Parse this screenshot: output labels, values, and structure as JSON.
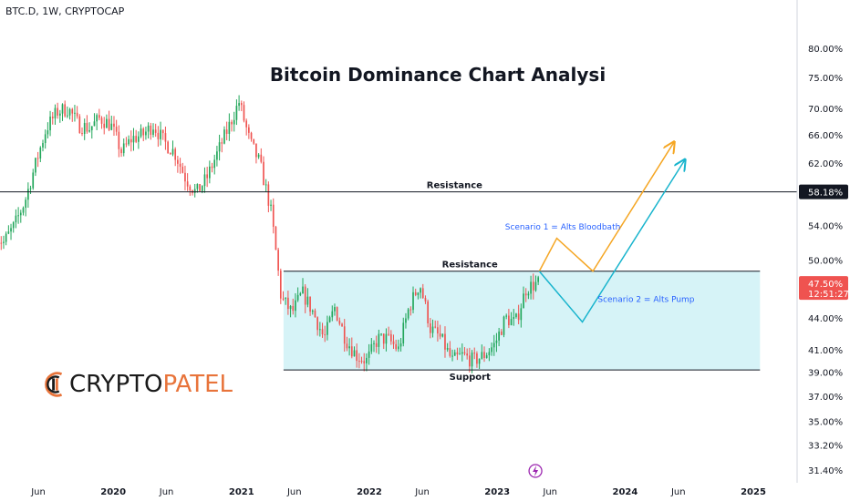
{
  "header": {
    "symbol": "BTC.D, 1W, CRYPTOCAP",
    "percent_label": "%"
  },
  "logo": {
    "text_part1": "CRYPTO",
    "text_part2": "PATEL",
    "accent": "#e8743b"
  },
  "colors": {
    "up": "#26a69a",
    "up_candle": "#21a65a",
    "down": "#ef5350",
    "zone_fill": "#d6f3f7",
    "scenario1": "#f5a623",
    "scenario2": "#18b4cd",
    "scenario1_text": "#2962ff",
    "price_badge": "#ef5350"
  },
  "chart_data": {
    "type": "candlestick",
    "title": "Bitcoin Dominance Chart Analysi",
    "y_axis": {
      "scale": "log",
      "unit": "%",
      "ticks": [
        "80.00%",
        "75.00%",
        "70.00%",
        "66.00%",
        "62.00%",
        "58.18%",
        "54.00%",
        "50.00%",
        "47.50%",
        "44.00%",
        "41.00%",
        "39.00%",
        "37.00%",
        "35.00%",
        "33.20%",
        "31.40%"
      ],
      "tick_values": [
        80,
        75,
        70,
        66,
        62,
        58.18,
        54,
        50,
        47.5,
        44,
        41,
        39,
        37,
        35,
        33.2,
        31.4
      ]
    },
    "x_axis": {
      "ticks": [
        "Jun",
        "2020",
        "Jun",
        "2021",
        "Jun",
        "2022",
        "Jun",
        "2023",
        "Jun",
        "2024",
        "Jun",
        "2025"
      ],
      "tick_dates": [
        "2019-06-01",
        "2020-01-01",
        "2020-06-01",
        "2021-01-01",
        "2021-06-01",
        "2022-01-01",
        "2022-06-01",
        "2023-01-01",
        "2023-06-01",
        "2024-01-01",
        "2024-06-01",
        "2025-01-01"
      ],
      "bold": [
        "2020",
        "2021",
        "2022",
        "2023",
        "2024",
        "2025"
      ],
      "range": [
        "2019-02-01",
        "2025-03-01"
      ]
    },
    "price_path": [
      [
        "2019-02-01",
        53
      ],
      [
        "2019-03-01",
        52
      ],
      [
        "2019-04-01",
        54
      ],
      [
        "2019-05-01",
        57
      ],
      [
        "2019-06-01",
        62
      ],
      [
        "2019-07-01",
        67
      ],
      [
        "2019-08-01",
        69.5
      ],
      [
        "2019-09-01",
        70
      ],
      [
        "2019-10-01",
        67.5
      ],
      [
        "2019-11-01",
        67
      ],
      [
        "2019-12-01",
        68.5
      ],
      [
        "2020-01-01",
        67.5
      ],
      [
        "2020-02-01",
        63.5
      ],
      [
        "2020-03-01",
        65.5
      ],
      [
        "2020-04-01",
        66
      ],
      [
        "2020-05-01",
        67.5
      ],
      [
        "2020-06-01",
        65
      ],
      [
        "2020-07-01",
        63.5
      ],
      [
        "2020-08-01",
        60
      ],
      [
        "2020-09-01",
        58
      ],
      [
        "2020-10-01",
        60
      ],
      [
        "2020-11-01",
        63.5
      ],
      [
        "2020-12-01",
        67
      ],
      [
        "2021-01-01",
        71
      ],
      [
        "2021-02-01",
        65
      ],
      [
        "2021-03-01",
        62
      ],
      [
        "2021-04-01",
        56
      ],
      [
        "2021-05-01",
        46
      ],
      [
        "2021-06-01",
        44.5
      ],
      [
        "2021-07-01",
        46.5
      ],
      [
        "2021-08-01",
        44.5
      ],
      [
        "2021-09-01",
        42
      ],
      [
        "2021-10-01",
        45
      ],
      [
        "2021-11-01",
        42
      ],
      [
        "2021-12-01",
        40.5
      ],
      [
        "2022-01-01",
        40
      ],
      [
        "2022-02-01",
        42
      ],
      [
        "2022-03-01",
        42
      ],
      [
        "2022-04-01",
        41
      ],
      [
        "2022-05-01",
        45
      ],
      [
        "2022-06-01",
        47.5
      ],
      [
        "2022-07-01",
        43
      ],
      [
        "2022-08-01",
        42
      ],
      [
        "2022-09-01",
        40
      ],
      [
        "2022-10-01",
        40.5
      ],
      [
        "2022-11-01",
        40
      ],
      [
        "2022-12-01",
        40.5
      ],
      [
        "2023-01-01",
        41.5
      ],
      [
        "2023-02-01",
        44
      ],
      [
        "2023-03-01",
        43.5
      ],
      [
        "2023-04-01",
        47
      ],
      [
        "2023-05-01",
        47.5
      ]
    ],
    "levels": [
      {
        "label": "Resistance",
        "value": 58.18,
        "color": "#131722",
        "span": "full",
        "label_date": "2022-09-01",
        "label_pos": "above"
      },
      {
        "label": "Resistance",
        "value": 48.8,
        "color": "#131722",
        "span": "zone",
        "label_date": "2022-10-15",
        "label_pos": "above"
      },
      {
        "label": "Support",
        "value": 39.2,
        "color": "#131722",
        "span": "zone",
        "label_date": "2022-10-15",
        "label_pos": "below"
      }
    ],
    "zone": {
      "from": "2021-05-01",
      "to": "2025-01-20",
      "low": 39.2,
      "high": 48.8
    },
    "scenarios": [
      {
        "label": "Scenario 1 = Alts Bloodbath",
        "color": "#f5a623",
        "path": [
          [
            "2023-05-01",
            48.8
          ],
          [
            "2023-06-20",
            52.5
          ],
          [
            "2023-10-01",
            48.8
          ],
          [
            "2024-05-20",
            65
          ]
        ],
        "label_date": "2023-07-07",
        "label_value": 53.5
      },
      {
        "label": "Scenario 2 = Alts Pump",
        "color": "#18b4cd",
        "path": [
          [
            "2023-05-01",
            48.8
          ],
          [
            "2023-09-01",
            43.6
          ],
          [
            "2024-06-20",
            62.5
          ]
        ],
        "label_date": "2024-03-01",
        "label_value": 45.6
      }
    ],
    "last_price": {
      "value": 47.5,
      "label": "47.50%",
      "countdown": "12:51:27"
    },
    "highlight_level": {
      "value": 58.18,
      "label": "58.18%"
    }
  }
}
